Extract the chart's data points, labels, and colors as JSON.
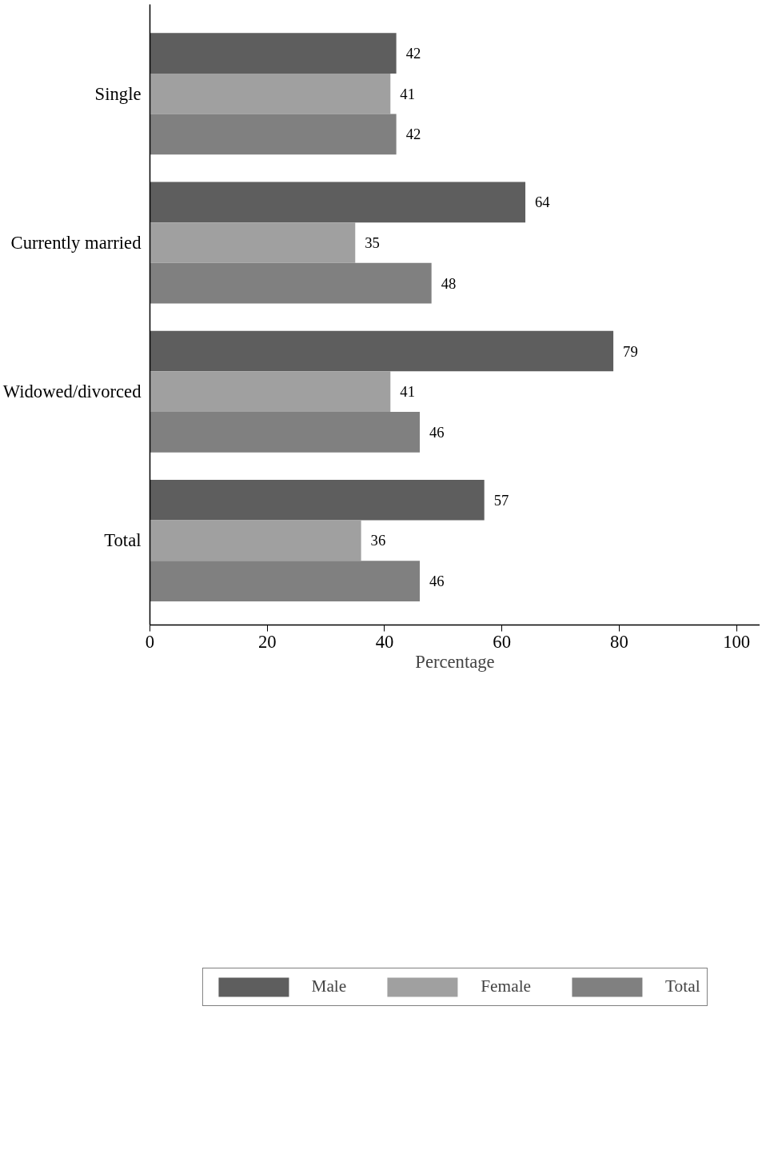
{
  "chart_data": {
    "type": "bar",
    "orientation": "horizontal",
    "xlabel": "Percentage",
    "categories": [
      "Single",
      "Currently married",
      "Widowed/divorced",
      "Total"
    ],
    "series": [
      {
        "name": "Male",
        "color": "#5e5e5e",
        "values": [
          42,
          64,
          79,
          57
        ]
      },
      {
        "name": "Female",
        "color": "#a0a0a0",
        "values": [
          41,
          35,
          41,
          36
        ]
      },
      {
        "name": "Total",
        "color": "#808080",
        "values": [
          42,
          48,
          46,
          46
        ]
      }
    ],
    "xlim": [
      0,
      104
    ],
    "xticks": [
      0,
      20,
      40,
      60,
      80,
      100
    ],
    "data_labels": true,
    "grid": false,
    "legend": "bottom"
  }
}
